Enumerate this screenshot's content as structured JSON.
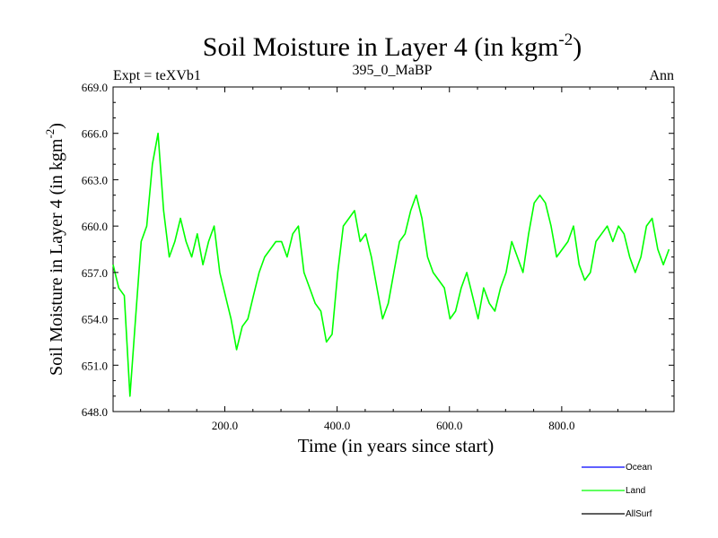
{
  "chart_data": {
    "type": "line",
    "title": "Soil Moisture in Layer 4 (in kgm",
    "title_sup": "-2",
    "title_close": ")",
    "subtitle_left": "Expt = teXVb1",
    "subtitle_center": "395_0_MaBP",
    "subtitle_right": "Ann",
    "xlabel": "Time (in years since start)",
    "ylabel": "Soil Moisture in Layer 4 (in kgm",
    "ylabel_sup": "-2",
    "ylabel_close": ")",
    "xlim": [
      1,
      1000
    ],
    "ylim": [
      648.0,
      669.0
    ],
    "x_ticks": [
      200,
      400,
      600,
      800
    ],
    "x_tick_labels": [
      "200.0",
      "400.0",
      "600.0",
      "800.0"
    ],
    "y_ticks": [
      648,
      651,
      654,
      657,
      660,
      663,
      666,
      669
    ],
    "y_tick_labels": [
      "648.0",
      "651.0",
      "654.0",
      "657.0",
      "660.0",
      "663.0",
      "666.0",
      "669.0"
    ],
    "legend": [
      {
        "name": "Ocean",
        "color": "#0000ff"
      },
      {
        "name": "Land",
        "color": "#00ff00"
      },
      {
        "name": "AllSurf",
        "color": "#000000"
      }
    ],
    "series": [
      {
        "name": "Land",
        "color": "#00ff00",
        "x_start": 1,
        "x_step": 10,
        "values": [
          657.5,
          656.0,
          655.5,
          649.0,
          654.0,
          659.0,
          660.0,
          664.0,
          666.0,
          661.0,
          658.0,
          659.0,
          660.5,
          659.0,
          658.0,
          659.5,
          657.5,
          659.0,
          660.0,
          657.0,
          655.5,
          654.0,
          652.0,
          653.5,
          654.0,
          655.5,
          657.0,
          658.0,
          658.5,
          659.0,
          659.0,
          658.0,
          659.5,
          660.0,
          657.0,
          656.0,
          655.0,
          654.5,
          652.5,
          653.0,
          657.0,
          660.0,
          660.5,
          661.0,
          659.0,
          659.5,
          658.0,
          656.0,
          654.0,
          655.0,
          657.0,
          659.0,
          659.5,
          661.0,
          662.0,
          660.5,
          658.0,
          657.0,
          656.5,
          656.0,
          654.0,
          654.5,
          656.0,
          657.0,
          655.5,
          654.0,
          656.0,
          655.0,
          654.5,
          656.0,
          657.0,
          659.0,
          658.0,
          657.0,
          659.5,
          661.5,
          662.0,
          661.5,
          660.0,
          658.0,
          658.5,
          659.0,
          660.0,
          657.5,
          656.5,
          657.0,
          659.0,
          659.5,
          660.0,
          659.0,
          660.0,
          659.5,
          658.0,
          657.0,
          658.0,
          660.0,
          660.5,
          658.5,
          657.5,
          658.5
        ]
      }
    ]
  }
}
